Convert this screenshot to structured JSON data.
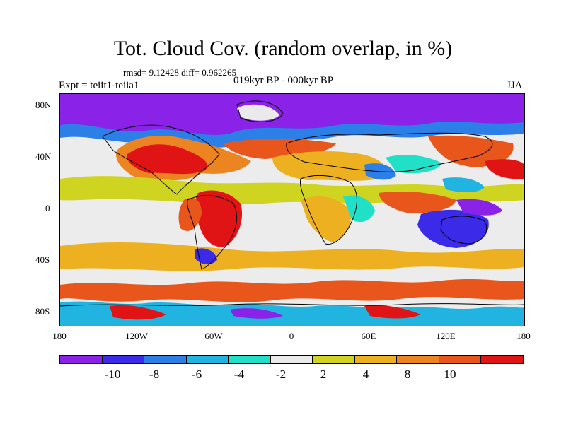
{
  "title": "Tot. Cloud Cov. (random overlap, in %)",
  "stats_line": "rmsd= 9.12428 diff= 0.962265",
  "period_label": "019kyr BP - 000kyr BP",
  "experiment_label": "Expt = teiit1-teiia1",
  "season_label": "JJA",
  "map": {
    "projection": "cylindrical equidistant",
    "lon_range": [
      -180,
      180
    ],
    "lat_range": [
      -90,
      90
    ],
    "y_ticks": [
      "80N",
      "40N",
      "0",
      "40S",
      "80S"
    ],
    "x_ticks": [
      "180",
      "120W",
      "60W",
      "0",
      "60E",
      "120E",
      "180"
    ],
    "features": [
      "coastlines",
      "filled contours of cloud cover difference"
    ]
  },
  "colorbar": {
    "colors": [
      "#8a22e8",
      "#3b2be8",
      "#2d7fe8",
      "#22b4e0",
      "#21e0c8",
      "#eaeaea",
      "#cfd421",
      "#ecb021",
      "#ec8521",
      "#e8561c",
      "#e01414"
    ],
    "labels": [
      "-10",
      "-8",
      "-6",
      "-4",
      "-2",
      "2",
      "4",
      "8",
      "10"
    ]
  }
}
